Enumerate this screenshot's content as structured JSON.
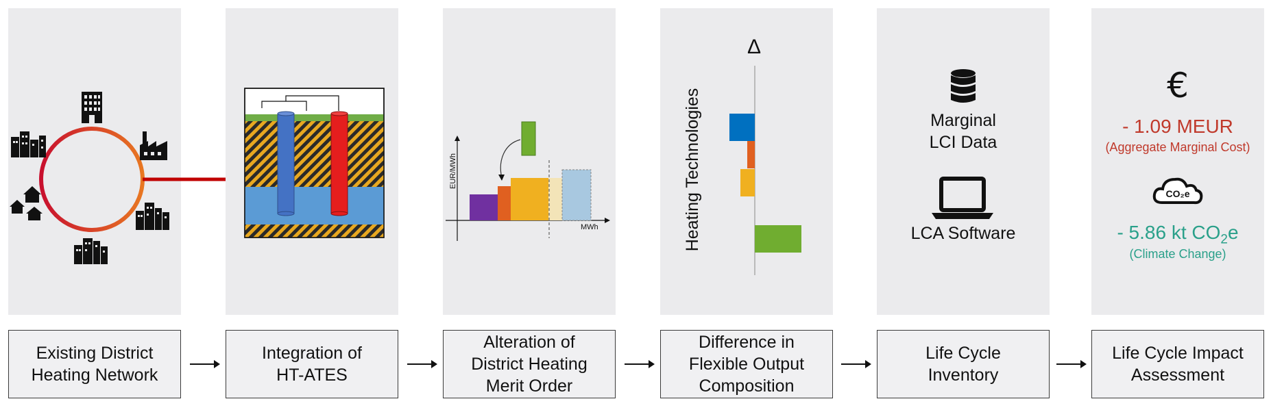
{
  "steps": [
    {
      "line1": "Existing District",
      "line2": "Heating Network"
    },
    {
      "line1": "Integration of",
      "line2": "HT-ATES"
    },
    {
      "line1": "Alteration of",
      "line2": "District Heating",
      "line3": "Merit Order"
    },
    {
      "line1": "Difference in",
      "line2": "Flexible Output",
      "line3": "Composition"
    },
    {
      "line1": "Life Cycle",
      "line2": "Inventory"
    },
    {
      "line1": "Life Cycle Impact",
      "line2": "Assessment"
    }
  ],
  "merit_order": {
    "ylabel": "EUR/MWh",
    "xlabel": "MWh"
  },
  "difference": {
    "symbol": "Δ",
    "axis_label": "Heating Technologies"
  },
  "inventory": {
    "data_line1": "Marginal",
    "data_line2": "LCI Data",
    "software": "LCA Software"
  },
  "impact": {
    "currency_symbol": "€",
    "cost_value": "- 1.09 MEUR",
    "cost_note": "(Aggregate Marginal Cost)",
    "cloud_label": "CO₂e",
    "climate_value_prefix": "- 5.86 kt CO",
    "climate_value_sub": "2",
    "climate_value_suffix": "e",
    "climate_note": "(Climate Change)"
  },
  "colors": {
    "pipe_red": "#c00000",
    "ring_start": "#c8102e",
    "ring_end": "#e87722",
    "blue": "#0070c0",
    "orange": "#e06020",
    "yellow": "#f0b020",
    "green": "#70ad30",
    "purple": "#7030a0",
    "light_blue": "#a8c8e0",
    "cost_red": "#c0392b",
    "climate_green": "#2aa08a"
  }
}
